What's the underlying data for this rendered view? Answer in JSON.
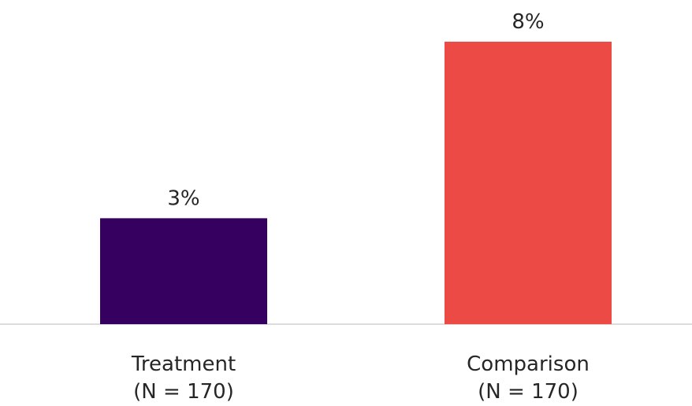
{
  "chart_data": {
    "type": "bar",
    "categories": [
      "Treatment",
      "Comparison"
    ],
    "category_sublabels": [
      "(N = 170)",
      "(N = 170)"
    ],
    "values": [
      3,
      8
    ],
    "value_labels": [
      "3%",
      "8%"
    ],
    "colors": [
      "#35005f",
      "#ec4a45"
    ],
    "title": "",
    "xlabel": "",
    "ylabel": "",
    "ylim": [
      0,
      8
    ],
    "grid": false,
    "legend": "none"
  }
}
